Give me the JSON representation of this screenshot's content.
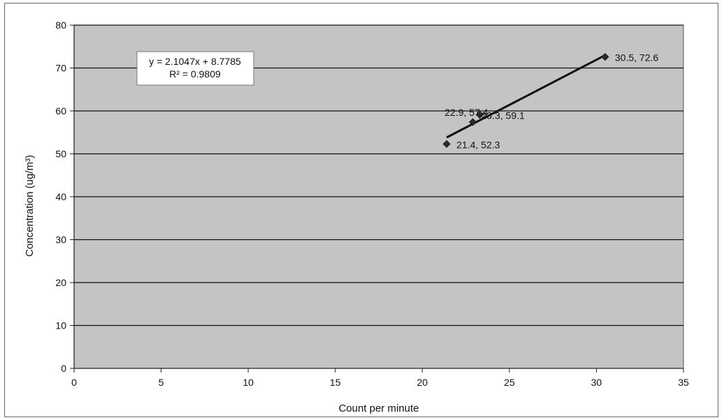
{
  "colors": {
    "plot_background": "#c4c4c4",
    "gridline": "#111111",
    "marker": "#2b2b2b",
    "trendline": "#111111",
    "text": "#111111"
  },
  "chart_data": {
    "type": "scatter",
    "title": "",
    "xlabel": "Count per minute",
    "ylabel": "Concentration (ug/m³)",
    "xlim": [
      0,
      35
    ],
    "ylim": [
      0,
      80
    ],
    "xticks": [
      0,
      5,
      10,
      15,
      20,
      25,
      30,
      35
    ],
    "yticks": [
      0,
      10,
      20,
      30,
      40,
      50,
      60,
      70,
      80
    ],
    "grid": "horizontal",
    "legend": "none",
    "marker": "diamond",
    "points": [
      {
        "x": 21.4,
        "y": 52.3,
        "label": "21.4, 52.3"
      },
      {
        "x": 22.9,
        "y": 57.4,
        "label": "22.9, 57.4"
      },
      {
        "x": 23.3,
        "y": 59.1,
        "label": "23.3, 59.1"
      },
      {
        "x": 30.5,
        "y": 72.6,
        "label": "30.5, 72.6"
      }
    ],
    "trendline": {
      "type": "linear",
      "slope": 2.1047,
      "intercept": 8.7785,
      "x_range": [
        21.4,
        30.5
      ],
      "equation": "y = 2.1047x + 8.7785",
      "r_squared": "R² = 0.9809"
    }
  }
}
